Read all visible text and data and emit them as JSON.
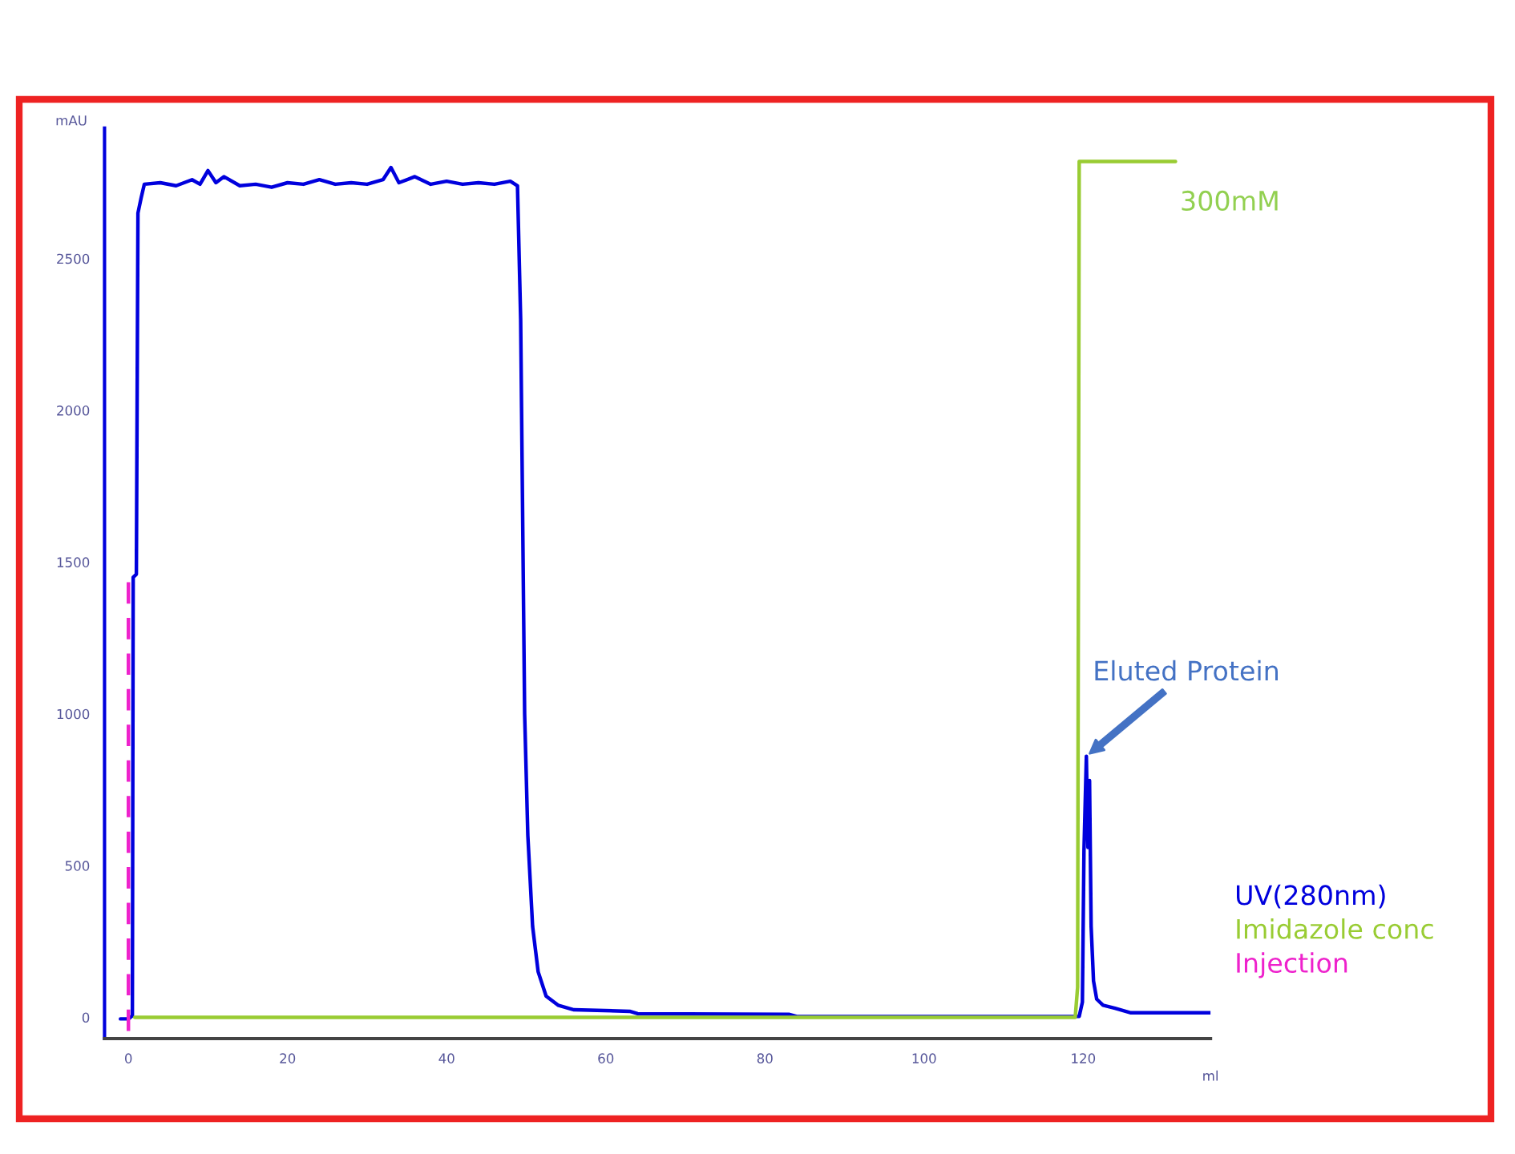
{
  "chart_data": {
    "type": "line",
    "xlabel": "ml",
    "ylabel": "mAU",
    "series": [
      {
        "name": "UV(280nm)",
        "color": "#0000dd",
        "x": [
          -1,
          0,
          0.5,
          0.6,
          1.0,
          1.2,
          1.6,
          2,
          4,
          6,
          8,
          9,
          10,
          11,
          12,
          14,
          16,
          18,
          20,
          22,
          24,
          26,
          28,
          30,
          32,
          33,
          34,
          36,
          38,
          40,
          42,
          44,
          46,
          48,
          48.9,
          49.3,
          49.8,
          50.2,
          50.8,
          51.5,
          52.5,
          54,
          56,
          63,
          64,
          83,
          84,
          119.5,
          119.9,
          120.1,
          120.4,
          120.6,
          120.8,
          121.0,
          121.3,
          121.7,
          122.5,
          124,
          126,
          136
        ],
        "values": [
          -5,
          -5,
          5,
          1450,
          1460,
          2650,
          2700,
          2745,
          2750,
          2740,
          2760,
          2745,
          2790,
          2750,
          2770,
          2740,
          2745,
          2735,
          2750,
          2745,
          2760,
          2745,
          2750,
          2745,
          2760,
          2800,
          2750,
          2770,
          2745,
          2755,
          2745,
          2750,
          2745,
          2755,
          2740,
          2300,
          1000,
          600,
          300,
          150,
          70,
          40,
          25,
          20,
          12,
          10,
          3,
          3,
          50,
          550,
          860,
          560,
          780,
          300,
          120,
          60,
          40,
          30,
          15,
          15
        ]
      },
      {
        "name": "Imidazole conc",
        "color": "#99cc33",
        "x": [
          0.8,
          119,
          119.3,
          119.5,
          131.6
        ],
        "values": [
          0,
          0,
          100,
          2820,
          2820
        ]
      },
      {
        "name": "Injection",
        "color": "#ee22cc",
        "line_style": "dashed",
        "x": [
          0,
          0
        ],
        "values": [
          -45,
          1450
        ]
      }
    ],
    "xlim": [
      -3,
      136
    ],
    "xticks": [
      0,
      20,
      40,
      60,
      80,
      100,
      120
    ],
    "ylim": [
      -70,
      2930
    ],
    "yticks": [
      0,
      500,
      1000,
      1500,
      2000,
      2500
    ],
    "annotations": [
      {
        "text": "Eluted Protein",
        "x": 120.4,
        "y": 860
      },
      {
        "text": "300mM",
        "x": 131.6,
        "y": 2820
      }
    ],
    "grid": false,
    "legend": "right"
  }
}
